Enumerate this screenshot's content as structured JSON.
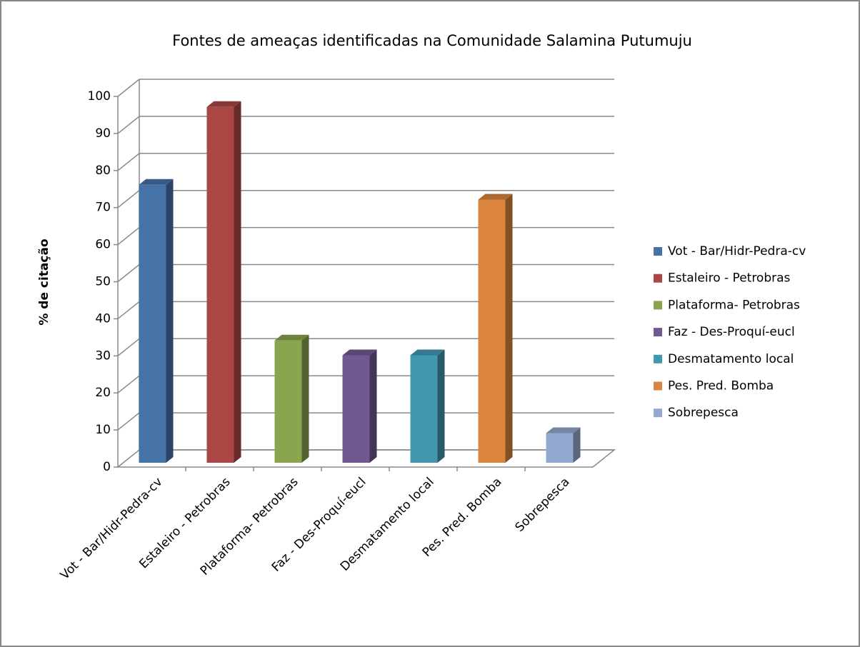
{
  "chart_data": {
    "type": "bar3d",
    "title": "Fontes de ameaças identificadas na Comunidade  Salamina  Putumuju",
    "y_label": "% de citação",
    "categories": [
      "Vot - Bar/Hidr-Pedra-cv",
      "Estaleiro - Petrobras",
      "Plataforma- Petrobras",
      "Faz - Des-Proquí-eucl",
      "Desmatamento local",
      "Pes. Pred. Bomba",
      "Sobrepesca"
    ],
    "values": [
      75,
      96,
      33,
      29,
      29,
      71,
      8
    ],
    "colors": [
      "#4572a7",
      "#aa4643",
      "#89a54e",
      "#71588f",
      "#4198af",
      "#db843d",
      "#93a9cf"
    ],
    "ylim": [
      0,
      100
    ],
    "yticks": [
      0,
      10,
      20,
      30,
      40,
      50,
      60,
      70,
      80,
      90,
      100
    ],
    "grid": true,
    "legend": "right"
  }
}
